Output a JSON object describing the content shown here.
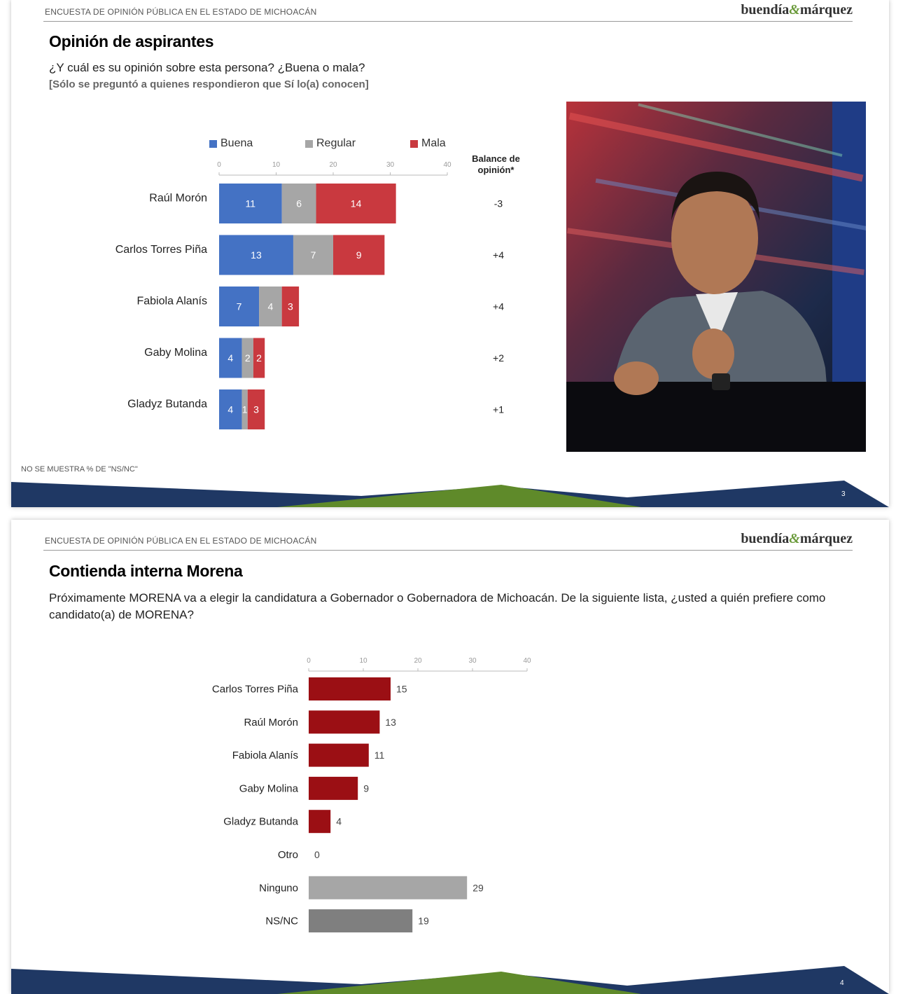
{
  "slides": [
    {
      "survey_label": "ENCUESTA DE OPINIÓN PÚBLICA EN EL ESTADO DE MICHOACÁN",
      "logo": {
        "left": "buendía",
        "amp": "&",
        "right": "márquez"
      },
      "title": "Opinión de aspirantes",
      "question": "¿Y cuál es su opinión sobre esta persona? ¿Buena o mala?",
      "note": "[Sólo se preguntó a quienes respondieron que Sí lo(a) conocen]",
      "balance_header": "Balance de opinión*",
      "footer_note": "NO SE MUESTRA % DE \"NS/NC\"",
      "page_number": "3"
    },
    {
      "survey_label": "ENCUESTA DE OPINIÓN PÚBLICA EN EL ESTADO DE MICHOACÁN",
      "logo": {
        "left": "buendía",
        "amp": "&",
        "right": "márquez"
      },
      "title": "Contienda interna Morena",
      "question": "Próximamente MORENA va a elegir la candidatura a Gobernador o Gobernadora de Michoacán. De la siguiente lista, ¿usted a quién prefiere como candidato(a) de MORENA?",
      "page_number": "4"
    }
  ],
  "colors": {
    "buena": "#4472c4",
    "regular": "#a6a6a6",
    "mala": "#c9393f",
    "morena": "#9b0f14",
    "ninguno": "#a6a6a6",
    "nsnc": "#7f7f7f",
    "navy": "#1f3864",
    "green": "#6b8e23"
  },
  "chart_data": [
    {
      "type": "bar",
      "orientation": "horizontal",
      "stacked": true,
      "categories": [
        "Raúl Morón",
        "Carlos Torres Piña",
        "Fabiola Alanís",
        "Gaby Molina",
        "Gladyz Butanda"
      ],
      "series": [
        {
          "name": "Buena",
          "values": [
            11,
            13,
            7,
            4,
            4
          ]
        },
        {
          "name": "Regular",
          "values": [
            6,
            7,
            4,
            2,
            1
          ]
        },
        {
          "name": "Mala",
          "values": [
            14,
            9,
            3,
            2,
            3
          ]
        }
      ],
      "balance": [
        "-3",
        "+4",
        "+4",
        "+2",
        "+1"
      ],
      "xlim": [
        0,
        40
      ],
      "xticks": [
        0,
        10,
        20,
        30,
        40
      ],
      "legend": "top"
    },
    {
      "type": "bar",
      "orientation": "horizontal",
      "categories": [
        "Carlos Torres Piña",
        "Raúl Morón",
        "Fabiola Alanís",
        "Gaby Molina",
        "Gladyz Butanda",
        "Otro",
        "Ninguno",
        "NS/NC"
      ],
      "values": [
        15,
        13,
        11,
        9,
        4,
        0,
        29,
        19
      ],
      "xlim": [
        0,
        40
      ],
      "xticks": [
        0,
        10,
        20,
        30,
        40
      ]
    }
  ]
}
